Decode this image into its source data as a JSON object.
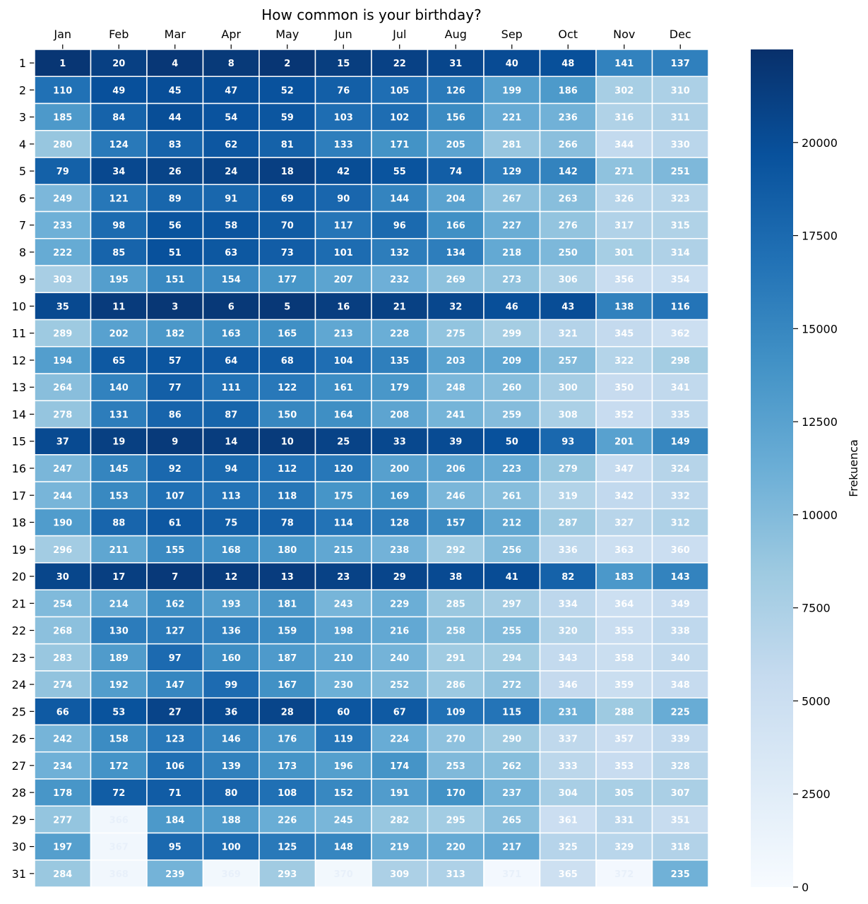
{
  "chart_data": {
    "type": "heatmap",
    "title": "How common is your birthday?",
    "colorbar_label": "Frekuenca",
    "colormap": "Blues",
    "color_range": [
      0,
      22500
    ],
    "colorbar_ticks": [
      0,
      2500,
      5000,
      7500,
      10000,
      12500,
      15000,
      17500,
      20000
    ],
    "x_categories": [
      "Jan",
      "Feb",
      "Mar",
      "Apr",
      "May",
      "Jun",
      "Jul",
      "Aug",
      "Sep",
      "Oct",
      "Nov",
      "Dec"
    ],
    "y_categories": [
      "1",
      "2",
      "3",
      "4",
      "5",
      "6",
      "7",
      "8",
      "9",
      "10",
      "11",
      "12",
      "13",
      "14",
      "15",
      "16",
      "17",
      "18",
      "19",
      "20",
      "21",
      "22",
      "23",
      "24",
      "25",
      "26",
      "27",
      "28",
      "29",
      "30",
      "31"
    ],
    "annotation": "rank",
    "ranks": [
      [
        1,
        20,
        4,
        8,
        2,
        15,
        22,
        31,
        40,
        48,
        141,
        137
      ],
      [
        110,
        49,
        45,
        47,
        52,
        76,
        105,
        126,
        199,
        186,
        302,
        310
      ],
      [
        185,
        84,
        44,
        54,
        59,
        103,
        102,
        156,
        221,
        236,
        316,
        311
      ],
      [
        280,
        124,
        83,
        62,
        81,
        133,
        171,
        205,
        281,
        266,
        344,
        330
      ],
      [
        79,
        34,
        26,
        24,
        18,
        42,
        55,
        74,
        129,
        142,
        271,
        251
      ],
      [
        249,
        121,
        89,
        91,
        69,
        90,
        144,
        204,
        267,
        263,
        326,
        323
      ],
      [
        233,
        98,
        56,
        58,
        70,
        117,
        96,
        166,
        227,
        276,
        317,
        315
      ],
      [
        222,
        85,
        51,
        63,
        73,
        101,
        132,
        134,
        218,
        250,
        301,
        314
      ],
      [
        303,
        195,
        151,
        154,
        177,
        207,
        232,
        269,
        273,
        306,
        356,
        354
      ],
      [
        35,
        11,
        3,
        6,
        5,
        16,
        21,
        32,
        46,
        43,
        138,
        116
      ],
      [
        289,
        202,
        182,
        163,
        165,
        213,
        228,
        275,
        299,
        321,
        345,
        362
      ],
      [
        194,
        65,
        57,
        64,
        68,
        104,
        135,
        203,
        209,
        257,
        322,
        298
      ],
      [
        264,
        140,
        77,
        111,
        122,
        161,
        179,
        248,
        260,
        300,
        350,
        341
      ],
      [
        278,
        131,
        86,
        87,
        150,
        164,
        208,
        241,
        259,
        308,
        352,
        335
      ],
      [
        37,
        19,
        9,
        14,
        10,
        25,
        33,
        39,
        50,
        93,
        201,
        149
      ],
      [
        247,
        145,
        92,
        94,
        112,
        120,
        200,
        206,
        223,
        279,
        347,
        324
      ],
      [
        244,
        153,
        107,
        113,
        118,
        175,
        169,
        246,
        261,
        319,
        342,
        332
      ],
      [
        190,
        88,
        61,
        75,
        78,
        114,
        128,
        157,
        212,
        287,
        327,
        312
      ],
      [
        296,
        211,
        155,
        168,
        180,
        215,
        238,
        292,
        256,
        336,
        363,
        360
      ],
      [
        30,
        17,
        7,
        12,
        13,
        23,
        29,
        38,
        41,
        82,
        183,
        143
      ],
      [
        254,
        214,
        162,
        193,
        181,
        243,
        229,
        285,
        297,
        334,
        364,
        349
      ],
      [
        268,
        130,
        127,
        136,
        159,
        198,
        216,
        258,
        255,
        320,
        355,
        338
      ],
      [
        283,
        189,
        97,
        160,
        187,
        210,
        240,
        291,
        294,
        343,
        358,
        340
      ],
      [
        274,
        192,
        147,
        99,
        167,
        230,
        252,
        286,
        272,
        346,
        359,
        348
      ],
      [
        66,
        53,
        27,
        36,
        28,
        60,
        67,
        109,
        115,
        231,
        288,
        225
      ],
      [
        242,
        158,
        123,
        146,
        176,
        119,
        224,
        270,
        290,
        337,
        357,
        339
      ],
      [
        234,
        172,
        106,
        139,
        173,
        196,
        174,
        253,
        262,
        333,
        353,
        328
      ],
      [
        178,
        72,
        71,
        80,
        108,
        152,
        191,
        170,
        237,
        304,
        305,
        307
      ],
      [
        277,
        366,
        184,
        188,
        226,
        245,
        282,
        295,
        265,
        361,
        331,
        351
      ],
      [
        197,
        367,
        95,
        100,
        125,
        148,
        219,
        220,
        217,
        325,
        329,
        318
      ],
      [
        284,
        368,
        239,
        369,
        293,
        370,
        309,
        313,
        371,
        365,
        372,
        235
      ]
    ]
  }
}
